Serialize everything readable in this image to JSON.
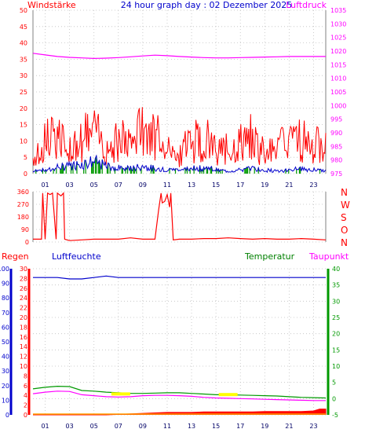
{
  "header": {
    "title": "24 hour graph day : 02 Dezember 2025",
    "left_label": "Windstärke",
    "right_label": "Luftdruck"
  },
  "wind_direction_letters": [
    "N",
    "W",
    "S",
    "O",
    "N"
  ],
  "bottom_labels": {
    "rain": "Regen",
    "humidity": "Luftfeuchte",
    "temperature": "Temperatur",
    "dewpoint": "Taupunkt"
  },
  "colors": {
    "red": "#ff0000",
    "magenta": "#ff00ff",
    "blue": "#0000cc",
    "green": "#009900",
    "dark_green": "#008000",
    "yellow": "#ffff00",
    "grid": "#c0c0c0"
  },
  "chart_data": [
    {
      "type": "line",
      "id": "wind_pressure",
      "title": "24 hour graph day : 02 Dezember 2025",
      "x_ticks": [
        "01",
        "03",
        "05",
        "07",
        "09",
        "11",
        "13",
        "15",
        "17",
        "19",
        "21",
        "23"
      ],
      "x_range_hours": [
        0,
        24
      ],
      "left_axis": {
        "label": "Windstärke",
        "range": [
          0,
          50
        ],
        "ticks": [
          0,
          5,
          10,
          15,
          20,
          25,
          30,
          35,
          40,
          45,
          50
        ]
      },
      "right_axis": {
        "label": "Luftdruck",
        "range": [
          975,
          1035
        ],
        "ticks": [
          975,
          980,
          985,
          990,
          995,
          1000,
          1005,
          1010,
          1015,
          1020,
          1025,
          1030,
          1035
        ]
      },
      "series": [
        {
          "name": "Luftdruck",
          "axis": "right",
          "x": [
            0,
            1,
            2,
            3,
            4,
            5,
            6,
            7,
            8,
            9,
            10,
            11,
            12,
            13,
            14,
            15,
            16,
            17,
            18,
            19,
            20,
            21,
            22,
            23,
            24
          ],
          "values": [
            1019.2,
            1018.6,
            1018.0,
            1017.7,
            1017.5,
            1017.3,
            1017.4,
            1017.6,
            1017.9,
            1018.2,
            1018.5,
            1018.3,
            1018.0,
            1017.8,
            1017.6,
            1017.5,
            1017.5,
            1017.6,
            1017.7,
            1017.8,
            1017.9,
            1018.0,
            1018.0,
            1018.0,
            1018.0
          ]
        },
        {
          "name": "Windböen",
          "axis": "left",
          "x": [
            0,
            1,
            2,
            3,
            4,
            5,
            6,
            7,
            8,
            9,
            10,
            11,
            12,
            13,
            14,
            15,
            16,
            17,
            18,
            19,
            20,
            21,
            22,
            23,
            24
          ],
          "values": [
            6,
            12,
            15,
            9,
            14,
            16,
            10,
            13,
            12,
            18,
            15,
            10,
            8,
            12,
            14,
            10,
            9,
            12,
            14,
            8,
            10,
            12,
            13,
            11,
            10
          ]
        },
        {
          "name": "Windmittel",
          "axis": "left",
          "x": [
            0,
            1,
            2,
            3,
            4,
            5,
            6,
            7,
            8,
            9,
            10,
            11,
            12,
            13,
            14,
            15,
            16,
            17,
            18,
            19,
            20,
            21,
            22,
            23,
            24
          ],
          "values": [
            1,
            1.5,
            2.5,
            3,
            4,
            5,
            3,
            2.5,
            2,
            3,
            2,
            1.5,
            1.5,
            2,
            2.5,
            1.5,
            1,
            1.5,
            2,
            1.5,
            1,
            1.5,
            2,
            1.5,
            1
          ]
        }
      ]
    },
    {
      "type": "line",
      "id": "wind_direction",
      "x_range_hours": [
        0,
        24
      ],
      "y_range": [
        0,
        360
      ],
      "y_ticks": [
        0,
        90,
        180,
        270,
        360
      ],
      "series": [
        {
          "name": "Windrichtung",
          "x": [
            0,
            0.7,
            0.8,
            1.0,
            1.2,
            1.4,
            1.6,
            1.9,
            2.0,
            2.3,
            2.5,
            2.6,
            2.8,
            3.0,
            4,
            5,
            6,
            7,
            8,
            9,
            10,
            10.3,
            10.5,
            10.6,
            10.8,
            11.0,
            11.2,
            11.3,
            11.5,
            12,
            13,
            14,
            15,
            16,
            17,
            18,
            19,
            20,
            21,
            22,
            23,
            24
          ],
          "values": [
            20,
            20,
            350,
            20,
            350,
            340,
            350,
            20,
            350,
            330,
            350,
            20,
            15,
            10,
            15,
            20,
            20,
            20,
            30,
            20,
            20,
            230,
            350,
            280,
            290,
            340,
            250,
            350,
            15,
            20,
            20,
            25,
            25,
            30,
            25,
            20,
            25,
            20,
            20,
            25,
            20,
            15
          ]
        }
      ]
    },
    {
      "type": "line",
      "id": "rain_humidity_temp",
      "x_range_hours": [
        0,
        24
      ],
      "left_axis_rain": {
        "label": "Regen",
        "range": [
          0,
          30
        ],
        "ticks": [
          0,
          2,
          4,
          6,
          8,
          10,
          12,
          14,
          16,
          18,
          20,
          22,
          24,
          26,
          28,
          30
        ]
      },
      "left_axis_humidity": {
        "label": "Luftfeuchte",
        "range": [
          0,
          100
        ],
        "ticks": [
          0,
          10,
          20,
          30,
          40,
          50,
          60,
          70,
          80,
          90,
          100
        ]
      },
      "right_axis": {
        "label": "Temperatur",
        "range": [
          -5,
          40
        ],
        "ticks": [
          -5,
          0,
          5,
          10,
          15,
          20,
          25,
          30,
          35,
          40
        ]
      },
      "series": [
        {
          "name": "Luftfeuchte",
          "axis": "humidity",
          "x": [
            0,
            1,
            2,
            3,
            4,
            5,
            6,
            7,
            8,
            9,
            10,
            11,
            12,
            13,
            14,
            15,
            16,
            17,
            18,
            19,
            20,
            21,
            22,
            23,
            24
          ],
          "values": [
            94,
            94,
            94,
            93,
            93,
            94,
            95,
            94,
            94,
            94,
            94,
            94,
            94,
            94,
            94,
            94,
            94,
            94,
            94,
            94,
            94,
            94,
            94,
            94,
            94
          ]
        },
        {
          "name": "Temperatur",
          "axis": "temp",
          "x": [
            0,
            1,
            2,
            3,
            4,
            5,
            6,
            7,
            8,
            9,
            10,
            11,
            12,
            13,
            14,
            15,
            16,
            17,
            18,
            19,
            20,
            21,
            22,
            23,
            24
          ],
          "values": [
            3.0,
            3.5,
            3.8,
            3.7,
            2.5,
            2.3,
            2.0,
            1.8,
            1.6,
            1.6,
            1.7,
            1.8,
            1.8,
            1.6,
            1.4,
            1.2,
            1.2,
            1.1,
            1.0,
            0.9,
            0.8,
            0.6,
            0.4,
            0.3,
            0.2
          ]
        },
        {
          "name": "Taupunkt",
          "axis": "temp",
          "x": [
            0,
            1,
            2,
            3,
            4,
            5,
            6,
            7,
            8,
            9,
            10,
            11,
            12,
            13,
            14,
            15,
            16,
            17,
            18,
            19,
            20,
            21,
            22,
            23,
            24
          ],
          "values": [
            1.5,
            2.0,
            2.3,
            2.2,
            1.2,
            0.9,
            0.6,
            0.5,
            0.6,
            0.9,
            1.0,
            1.0,
            0.9,
            0.7,
            0.4,
            0.2,
            0.1,
            0.0,
            -0.1,
            -0.2,
            -0.3,
            -0.4,
            -0.5,
            -0.6,
            -0.6
          ]
        },
        {
          "name": "Regen",
          "axis": "rain",
          "x": [
            0,
            6,
            7,
            8,
            9,
            10,
            11,
            12,
            13,
            14,
            15,
            16,
            17,
            18,
            19,
            20,
            21,
            22,
            23,
            23.5,
            24
          ],
          "values": [
            0,
            0,
            0.1,
            0.2,
            0.3,
            0.4,
            0.5,
            0.5,
            0.5,
            0.6,
            0.6,
            0.6,
            0.6,
            0.6,
            0.7,
            0.7,
            0.7,
            0.7,
            0.8,
            1.2,
            1.2
          ]
        }
      ]
    }
  ]
}
